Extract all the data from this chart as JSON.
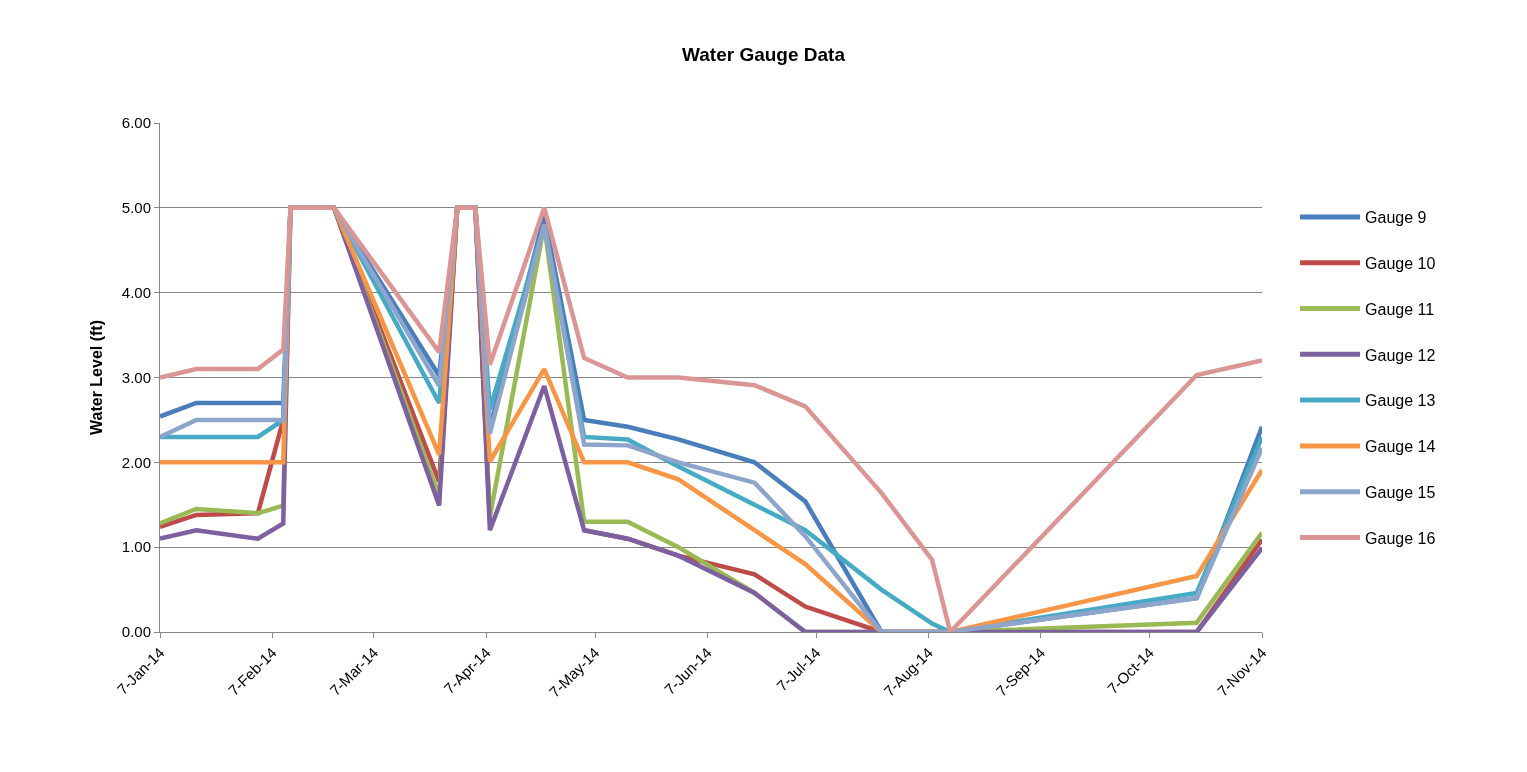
{
  "chart_data": {
    "type": "line",
    "title": "Water Gauge Data",
    "ylabel": "Water Level (ft)",
    "x": [
      "2014-01-07",
      "2014-01-17",
      "2014-02-03",
      "2014-02-10",
      "2014-02-12",
      "2014-02-24",
      "2014-03-25",
      "2014-03-30",
      "2014-04-04",
      "2014-04-08",
      "2014-04-23",
      "2014-05-04",
      "2014-05-16",
      "2014-05-30",
      "2014-06-20",
      "2014-07-04",
      "2014-07-25",
      "2014-08-08",
      "2014-08-13",
      "2014-10-20",
      "2014-11-07"
    ],
    "series": [
      {
        "name": "Gauge 9",
        "color": "#4a7ebb",
        "values": [
          2.54,
          2.7,
          2.7,
          2.7,
          5,
          5,
          3.02,
          5,
          5,
          2.4,
          4.9,
          2.5,
          2.42,
          2.27,
          2.0,
          1.54,
          0,
          0,
          0,
          0.4,
          2.42
        ]
      },
      {
        "name": "Gauge 10",
        "color": "#be4b48",
        "values": [
          1.24,
          1.38,
          1.4,
          2.5,
          5,
          5,
          1.77,
          5,
          5,
          1.3,
          null,
          1.2,
          1.1,
          0.9,
          0.68,
          0.3,
          0,
          0,
          0,
          0,
          1.09
        ]
      },
      {
        "name": "Gauge 11",
        "color": "#98b954",
        "values": [
          1.28,
          1.45,
          1.4,
          1.49,
          5,
          5,
          1.6,
          5,
          5,
          1.36,
          4.8,
          1.3,
          1.3,
          1.0,
          0.46,
          0,
          0,
          0,
          0,
          0.11,
          1.17
        ]
      },
      {
        "name": "Gauge 12",
        "color": "#7d60a0",
        "values": [
          1.1,
          1.2,
          1.1,
          1.28,
          5,
          5,
          1.49,
          5,
          5,
          1.2,
          2.9,
          1.2,
          1.1,
          0.9,
          0.46,
          0,
          0,
          0,
          0,
          0,
          0.99
        ]
      },
      {
        "name": "Gauge 13",
        "color": "#46aac5",
        "values": [
          2.3,
          2.3,
          2.3,
          2.5,
          5,
          5,
          2.7,
          5,
          5,
          2.62,
          4.8,
          2.3,
          2.27,
          1.95,
          1.5,
          1.2,
          0.5,
          0.1,
          0,
          0.46,
          2.3
        ]
      },
      {
        "name": "Gauge 14",
        "color": "#f79646",
        "values": [
          2.0,
          2.0,
          2.0,
          2.0,
          5,
          5,
          2.09,
          5,
          5,
          2.01,
          3.1,
          2.0,
          2.0,
          1.8,
          1.2,
          0.8,
          0,
          0,
          0,
          0.66,
          1.91
        ]
      },
      {
        "name": "Gauge 15",
        "color": "#8ea5cb",
        "values": [
          2.3,
          2.5,
          2.5,
          2.5,
          5,
          5,
          2.9,
          5,
          5,
          2.34,
          4.8,
          2.21,
          2.2,
          2.0,
          1.76,
          1.13,
          0,
          0,
          0,
          0.4,
          2.17
        ]
      },
      {
        "name": "Gauge 16",
        "color": "#d99694",
        "values": [
          3.0,
          3.1,
          3.1,
          3.33,
          5,
          5,
          3.3,
          5,
          5,
          3.15,
          5,
          3.23,
          3.0,
          3.0,
          2.91,
          2.66,
          1.64,
          0.85,
          0,
          3.03,
          3.2
        ]
      }
    ],
    "xlim": [
      "2014-01-07",
      "2014-11-07"
    ],
    "xticks": [
      {
        "value": "2014-01-07",
        "label": "7-Jan-14"
      },
      {
        "value": "2014-02-07",
        "label": "7-Feb-14"
      },
      {
        "value": "2014-03-07",
        "label": "7-Mar-14"
      },
      {
        "value": "2014-04-07",
        "label": "7-Apr-14"
      },
      {
        "value": "2014-05-07",
        "label": "7-May-14"
      },
      {
        "value": "2014-06-07",
        "label": "7-Jun-14"
      },
      {
        "value": "2014-07-07",
        "label": "7-Jul-14"
      },
      {
        "value": "2014-08-07",
        "label": "7-Aug-14"
      },
      {
        "value": "2014-09-07",
        "label": "7-Sep-14"
      },
      {
        "value": "2014-10-07",
        "label": "7-Oct-14"
      },
      {
        "value": "2014-11-07",
        "label": "7-Nov-14"
      }
    ],
    "ylim": [
      0,
      6
    ],
    "yticks": [
      {
        "value": 0,
        "label": "0.00"
      },
      {
        "value": 1,
        "label": "1.00"
      },
      {
        "value": 2,
        "label": "2.00"
      },
      {
        "value": 3,
        "label": "3.00"
      },
      {
        "value": 4,
        "label": "4.00"
      },
      {
        "value": 5,
        "label": "5.00"
      },
      {
        "value": 6,
        "label": "6.00"
      }
    ],
    "grid": "y",
    "legend": "right",
    "marker": "none",
    "line_style": "solid"
  }
}
